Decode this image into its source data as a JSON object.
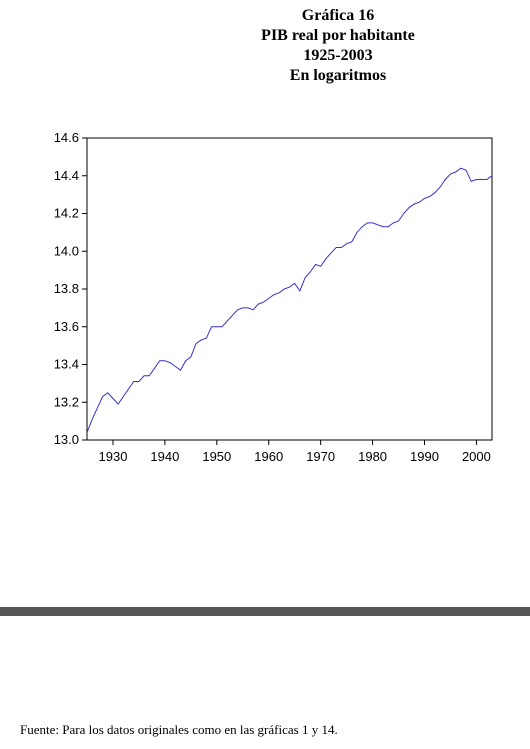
{
  "header": {
    "line1": "Gráfica 16",
    "line2": "PIB real por habitante",
    "line3": "1925-2003",
    "line4": "En logaritmos"
  },
  "footer": {
    "source": "Fuente: Para los datos originales como en las gráficas 1 y 14."
  },
  "chart_data": {
    "type": "line",
    "title": "Gráfica 16 / PIB real por habitante / 1925-2003 / En logaritmos",
    "xlabel": "",
    "ylabel": "",
    "xlim": [
      1925,
      2003
    ],
    "ylim": [
      13.0,
      14.6
    ],
    "x_ticks": [
      1930,
      1940,
      1950,
      1960,
      1970,
      1980,
      1990,
      2000
    ],
    "y_ticks": [
      13.0,
      13.2,
      13.4,
      13.6,
      13.8,
      14.0,
      14.2,
      14.4,
      14.6
    ],
    "grid": false,
    "line_color": "#3333cc",
    "series": [
      {
        "x": [
          1925,
          1926,
          1927,
          1928,
          1929,
          1930,
          1931,
          1932,
          1933,
          1934,
          1935,
          1936,
          1937,
          1938,
          1939,
          1940,
          1941,
          1942,
          1943,
          1944,
          1945,
          1946,
          1947,
          1948,
          1949,
          1950,
          1951,
          1952,
          1953,
          1954,
          1955,
          1956,
          1957,
          1958,
          1959,
          1960,
          1961,
          1962,
          1963,
          1964,
          1965,
          1966,
          1967,
          1968,
          1969,
          1970,
          1971,
          1972,
          1973,
          1974,
          1975,
          1976,
          1977,
          1978,
          1979,
          1980,
          1981,
          1982,
          1983,
          1984,
          1985,
          1986,
          1987,
          1988,
          1989,
          1990,
          1991,
          1992,
          1993,
          1994,
          1995,
          1996,
          1997,
          1998,
          1999,
          2000,
          2001,
          2002,
          2003
        ],
        "values": [
          13.04,
          13.11,
          13.17,
          13.23,
          13.25,
          13.22,
          13.19,
          13.23,
          13.27,
          13.31,
          13.31,
          13.34,
          13.34,
          13.38,
          13.42,
          13.42,
          13.41,
          13.39,
          13.37,
          13.42,
          13.44,
          13.51,
          13.53,
          13.54,
          13.6,
          13.6,
          13.6,
          13.63,
          13.66,
          13.69,
          13.7,
          13.7,
          13.69,
          13.72,
          13.73,
          13.75,
          13.77,
          13.78,
          13.8,
          13.81,
          13.83,
          13.79,
          13.86,
          13.89,
          13.93,
          13.92,
          13.96,
          13.99,
          14.02,
          14.02,
          14.04,
          14.05,
          14.1,
          14.13,
          14.15,
          14.15,
          14.14,
          14.13,
          14.13,
          14.15,
          14.16,
          14.2,
          14.23,
          14.25,
          14.26,
          14.28,
          14.29,
          14.31,
          14.34,
          14.38,
          14.41,
          14.42,
          14.44,
          14.43,
          14.37,
          14.38,
          14.38,
          14.38,
          14.4
        ]
      }
    ]
  }
}
